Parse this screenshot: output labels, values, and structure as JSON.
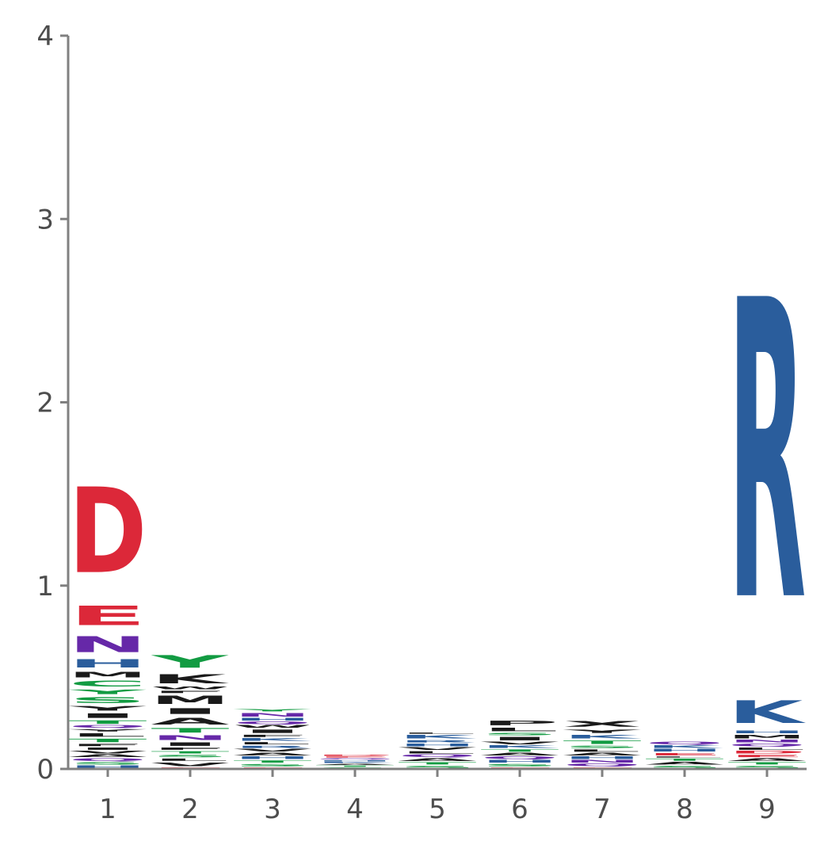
{
  "chart_data": {
    "type": "sequence-logo",
    "title": "",
    "xlabel": "",
    "ylabel": "",
    "ylim": [
      0,
      4
    ],
    "yticks": [
      0,
      1,
      2,
      3,
      4
    ],
    "positions": [
      "1",
      "2",
      "3",
      "4",
      "5",
      "6",
      "7",
      "8",
      "9"
    ],
    "colors": {
      "acidic": "#dc2839",
      "basic": "#2a5d9c",
      "amide": "#6628a8",
      "polar": "#129b42",
      "hydrophobic": "#1a1a1a"
    },
    "stacks": [
      {
        "position": "1",
        "letters": [
          {
            "aa": "H",
            "color": "#2a5d9c",
            "height": 0.02
          },
          {
            "aa": "S",
            "color": "#129b42",
            "height": 0.02
          },
          {
            "aa": "Q",
            "color": "#6628a8",
            "height": 0.02
          },
          {
            "aa": "A",
            "color": "#1a1a1a",
            "height": 0.02
          },
          {
            "aa": "V",
            "color": "#1a1a1a",
            "height": 0.02
          },
          {
            "aa": "I",
            "color": "#1a1a1a",
            "height": 0.02
          },
          {
            "aa": "F",
            "color": "#1a1a1a",
            "height": 0.02
          },
          {
            "aa": "T",
            "color": "#129b42",
            "height": 0.03
          },
          {
            "aa": "L",
            "color": "#1a1a1a",
            "height": 0.03
          },
          {
            "aa": "Y",
            "color": "#1a1a1a",
            "height": 0.02
          },
          {
            "aa": "Q",
            "color": "#6628a8",
            "height": 0.02
          },
          {
            "aa": "T",
            "color": "#129b42",
            "height": 0.03
          },
          {
            "aa": "I",
            "color": "#1a1a1a",
            "height": 0.04
          },
          {
            "aa": "Y",
            "color": "#1a1a1a",
            "height": 0.04
          },
          {
            "aa": "S",
            "color": "#129b42",
            "height": 0.05
          },
          {
            "aa": "Y",
            "color": "#129b42",
            "height": 0.04
          },
          {
            "aa": "C",
            "color": "#129b42",
            "height": 0.05
          },
          {
            "aa": "M",
            "color": "#1a1a1a",
            "height": 0.05
          },
          {
            "aa": "H",
            "color": "#2a5d9c",
            "height": 0.07
          },
          {
            "aa": "N",
            "color": "#6628a8",
            "height": 0.14
          },
          {
            "aa": "E",
            "color": "#dc2839",
            "height": 0.17
          },
          {
            "aa": "D",
            "color": "#dc2839",
            "height": 0.75
          }
        ]
      },
      {
        "position": "2",
        "letters": [
          {
            "aa": "E",
            "color": "#dc2839",
            "height": 0.01
          },
          {
            "aa": "V",
            "color": "#1a1a1a",
            "height": 0.03
          },
          {
            "aa": "L",
            "color": "#1a1a1a",
            "height": 0.02
          },
          {
            "aa": "S",
            "color": "#129b42",
            "height": 0.02
          },
          {
            "aa": "T",
            "color": "#129b42",
            "height": 0.02
          },
          {
            "aa": "F",
            "color": "#1a1a1a",
            "height": 0.02
          },
          {
            "aa": "I",
            "color": "#1a1a1a",
            "height": 0.03
          },
          {
            "aa": "N",
            "color": "#6628a8",
            "height": 0.04
          },
          {
            "aa": "T",
            "color": "#129b42",
            "height": 0.04
          },
          {
            "aa": "A",
            "color": "#1a1a1a",
            "height": 0.06
          },
          {
            "aa": "I",
            "color": "#1a1a1a",
            "height": 0.05
          },
          {
            "aa": "M",
            "color": "#1a1a1a",
            "height": 0.07
          },
          {
            "aa": "F",
            "color": "#1a1a1a",
            "height": 0.02
          },
          {
            "aa": "W",
            "color": "#1a1a1a",
            "height": 0.02
          },
          {
            "aa": "K",
            "color": "#1a1a1a",
            "height": 0.08
          },
          {
            "aa": "Y",
            "color": "#129b42",
            "height": 0.11
          }
        ]
      },
      {
        "position": "3",
        "letters": [
          {
            "aa": "E",
            "color": "#dc2839",
            "height": 0.01
          },
          {
            "aa": "S",
            "color": "#129b42",
            "height": 0.02
          },
          {
            "aa": "T",
            "color": "#129b42",
            "height": 0.02
          },
          {
            "aa": "H",
            "color": "#2a5d9c",
            "height": 0.02
          },
          {
            "aa": "A",
            "color": "#1a1a1a",
            "height": 0.02
          },
          {
            "aa": "V",
            "color": "#1a1a1a",
            "height": 0.02
          },
          {
            "aa": "R",
            "color": "#2a5d9c",
            "height": 0.02
          },
          {
            "aa": "L",
            "color": "#1a1a1a",
            "height": 0.02
          },
          {
            "aa": "K",
            "color": "#2a5d9c",
            "height": 0.02
          },
          {
            "aa": "F",
            "color": "#1a1a1a",
            "height": 0.02
          },
          {
            "aa": "I",
            "color": "#1a1a1a",
            "height": 0.03
          },
          {
            "aa": "W",
            "color": "#1a1a1a",
            "height": 0.02
          },
          {
            "aa": "Q",
            "color": "#6628a8",
            "height": 0.02
          },
          {
            "aa": "H",
            "color": "#2a5d9c",
            "height": 0.02
          },
          {
            "aa": "N",
            "color": "#6628a8",
            "height": 0.03
          },
          {
            "aa": "Y",
            "color": "#129b42",
            "height": 0.02
          }
        ]
      },
      {
        "position": "4",
        "letters": [
          {
            "aa": "S",
            "color": "#129b42",
            "height": 0.01
          },
          {
            "aa": "T",
            "color": "#129b42",
            "height": 0.01
          },
          {
            "aa": "A",
            "color": "#1a1a1a",
            "height": 0.01
          },
          {
            "aa": "K",
            "color": "#2a5d9c",
            "height": 0.01
          },
          {
            "aa": "H",
            "color": "#2a5d9c",
            "height": 0.01
          },
          {
            "aa": "Q",
            "color": "#6628a8",
            "height": 0.01
          },
          {
            "aa": "E",
            "color": "#dc2839",
            "height": 0.01
          },
          {
            "aa": "D",
            "color": "#dc2839",
            "height": 0.01
          }
        ]
      },
      {
        "position": "5",
        "letters": [
          {
            "aa": "S",
            "color": "#129b42",
            "height": 0.02
          },
          {
            "aa": "T",
            "color": "#129b42",
            "height": 0.02
          },
          {
            "aa": "A",
            "color": "#1a1a1a",
            "height": 0.02
          },
          {
            "aa": "Q",
            "color": "#6628a8",
            "height": 0.02
          },
          {
            "aa": "L",
            "color": "#1a1a1a",
            "height": 0.02
          },
          {
            "aa": "V",
            "color": "#1a1a1a",
            "height": 0.02
          },
          {
            "aa": "H",
            "color": "#2a5d9c",
            "height": 0.02
          },
          {
            "aa": "R",
            "color": "#2a5d9c",
            "height": 0.02
          },
          {
            "aa": "K",
            "color": "#2a5d9c",
            "height": 0.03
          },
          {
            "aa": "L",
            "color": "#1a1a1a",
            "height": 0.01
          }
        ]
      },
      {
        "position": "6",
        "letters": [
          {
            "aa": "E",
            "color": "#dc2839",
            "height": 0.01
          },
          {
            "aa": "S",
            "color": "#129b42",
            "height": 0.02
          },
          {
            "aa": "H",
            "color": "#2a5d9c",
            "height": 0.02
          },
          {
            "aa": "Q",
            "color": "#6628a8",
            "height": 0.02
          },
          {
            "aa": "A",
            "color": "#1a1a1a",
            "height": 0.02
          },
          {
            "aa": "T",
            "color": "#129b42",
            "height": 0.02
          },
          {
            "aa": "K",
            "color": "#2a5d9c",
            "height": 0.02
          },
          {
            "aa": "V",
            "color": "#1a1a1a",
            "height": 0.02
          },
          {
            "aa": "I",
            "color": "#1a1a1a",
            "height": 0.03
          },
          {
            "aa": "S",
            "color": "#129b42",
            "height": 0.02
          },
          {
            "aa": "L",
            "color": "#1a1a1a",
            "height": 0.03
          },
          {
            "aa": "P",
            "color": "#1a1a1a",
            "height": 0.04
          }
        ]
      },
      {
        "position": "7",
        "letters": [
          {
            "aa": "E",
            "color": "#dc2839",
            "height": 0.01
          },
          {
            "aa": "Q",
            "color": "#6628a8",
            "height": 0.02
          },
          {
            "aa": "N",
            "color": "#6628a8",
            "height": 0.02
          },
          {
            "aa": "H",
            "color": "#2a5d9c",
            "height": 0.02
          },
          {
            "aa": "A",
            "color": "#1a1a1a",
            "height": 0.02
          },
          {
            "aa": "L",
            "color": "#1a1a1a",
            "height": 0.02
          },
          {
            "aa": "S",
            "color": "#129b42",
            "height": 0.02
          },
          {
            "aa": "T",
            "color": "#129b42",
            "height": 0.03
          },
          {
            "aa": "K",
            "color": "#2a5d9c",
            "height": 0.03
          },
          {
            "aa": "Y",
            "color": "#1a1a1a",
            "height": 0.03
          },
          {
            "aa": "X",
            "color": "#1a1a1a",
            "height": 0.05
          }
        ]
      },
      {
        "position": "8",
        "letters": [
          {
            "aa": "S",
            "color": "#129b42",
            "height": 0.02
          },
          {
            "aa": "A",
            "color": "#1a1a1a",
            "height": 0.02
          },
          {
            "aa": "T",
            "color": "#129b42",
            "height": 0.02
          },
          {
            "aa": "L",
            "color": "#1a1a1a",
            "height": 0.01
          },
          {
            "aa": "E",
            "color": "#dc2839",
            "height": 0.02
          },
          {
            "aa": "H",
            "color": "#2a5d9c",
            "height": 0.02
          },
          {
            "aa": "K",
            "color": "#2a5d9c",
            "height": 0.02
          },
          {
            "aa": "Q",
            "color": "#6628a8",
            "height": 0.02
          }
        ]
      },
      {
        "position": "9",
        "letters": [
          {
            "aa": "S",
            "color": "#129b42",
            "height": 0.02
          },
          {
            "aa": "T",
            "color": "#129b42",
            "height": 0.02
          },
          {
            "aa": "A",
            "color": "#1a1a1a",
            "height": 0.02
          },
          {
            "aa": "E",
            "color": "#dc2839",
            "height": 0.02
          },
          {
            "aa": "D",
            "color": "#dc2839",
            "height": 0.02
          },
          {
            "aa": "L",
            "color": "#1a1a1a",
            "height": 0.02
          },
          {
            "aa": "Q",
            "color": "#6628a8",
            "height": 0.02
          },
          {
            "aa": "N",
            "color": "#6628a8",
            "height": 0.02
          },
          {
            "aa": "M",
            "color": "#1a1a1a",
            "height": 0.03
          },
          {
            "aa": "H",
            "color": "#2a5d9c",
            "height": 0.02
          },
          {
            "aa": "K",
            "color": "#2a5d9c",
            "height": 0.2
          },
          {
            "aa": "R",
            "color": "#2a5d9c",
            "height": 2.62
          }
        ]
      }
    ]
  }
}
